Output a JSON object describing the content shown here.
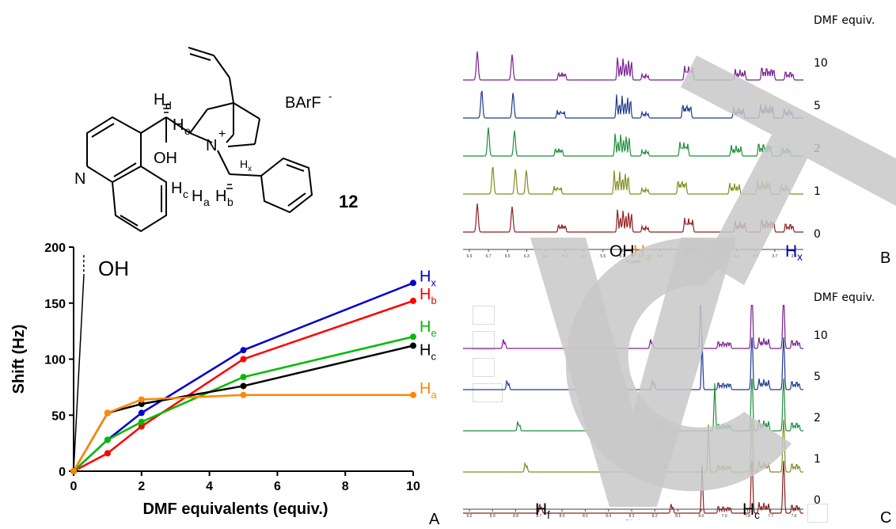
{
  "panels": {
    "a": "A",
    "b": "B",
    "c": "C"
  },
  "structure": {
    "counterion": "BArF",
    "counterion_charge": "-",
    "compound_number": "12",
    "atom_n1": "N",
    "atom_n2": "N",
    "charge": "+",
    "oh": "OH",
    "h_d": "H",
    "h_d_sub": "d",
    "h_e": "H",
    "h_e_sub": "e",
    "h_c": "H",
    "h_c_sub": "c",
    "h_a": "H",
    "h_a_sub": "a",
    "h_b": "H",
    "h_b_sub": "b",
    "h_x": "H",
    "h_x_sub": "x"
  },
  "chart_data": {
    "type": "line",
    "xlabel": "DMF equivalents (equiv.)",
    "ylabel": "Shift (Hz)",
    "xlim": [
      0,
      10
    ],
    "ylim": [
      0,
      200
    ],
    "x_ticks": [
      "0",
      "2",
      "4",
      "6",
      "8",
      "10"
    ],
    "y_ticks": [
      "0",
      "50",
      "100",
      "150",
      "200"
    ],
    "annotation": "OH",
    "oh_line": {
      "x": [
        0,
        0.3
      ],
      "y": [
        0,
        195
      ]
    },
    "series": [
      {
        "name": "H",
        "sub": "x",
        "color": "#0000cc",
        "x": [
          0,
          1,
          2,
          5,
          10
        ],
        "y": [
          0,
          28,
          52,
          108,
          168
        ]
      },
      {
        "name": "H",
        "sub": "b",
        "color": "#ff0000",
        "x": [
          0,
          1,
          2,
          5,
          10
        ],
        "y": [
          0,
          16,
          40,
          100,
          152
        ]
      },
      {
        "name": "H",
        "sub": "e",
        "color": "#00bb00",
        "x": [
          0,
          1,
          2,
          5,
          10
        ],
        "y": [
          0,
          28,
          44,
          84,
          120
        ]
      },
      {
        "name": "H",
        "sub": "c",
        "color": "#000000",
        "x": [
          0,
          1,
          2,
          5,
          10
        ],
        "y": [
          0,
          52,
          60,
          76,
          112
        ]
      },
      {
        "name": "H",
        "sub": "a",
        "color": "#ff8800",
        "x": [
          0,
          1,
          2,
          5,
          10
        ],
        "y": [
          0,
          52,
          64,
          68,
          68
        ]
      }
    ]
  },
  "spectra_b": {
    "header": "DMF equiv.",
    "equivs": [
      "10",
      "5",
      "2",
      "1",
      "0"
    ],
    "colors": [
      "#7a1f8f",
      "#1f3c8f",
      "#1f8f3c",
      "#7f8f1f",
      "#8f1f1f"
    ],
    "axis_ticks": [
      "6.9",
      "6.7",
      "6.5",
      "6.3",
      "6.1",
      "5.9",
      "5.7",
      "5.5",
      "5.3",
      "5.1",
      "4.9",
      "4.7",
      "4.5",
      "4.3",
      "4.1",
      "3.9",
      "3.7",
      "3.5"
    ],
    "axis_unit": "f1 (ppm)",
    "labels": [
      {
        "h": "OH",
        "sub": "",
        "color": "#000000"
      },
      {
        "h": "H",
        "sub": "a",
        "color": "#ff8800"
      },
      {
        "h": "H",
        "sub": "b",
        "color": "#ff0000"
      },
      {
        "h": "H",
        "sub": "x",
        "color": "#0000aa"
      }
    ]
  },
  "spectra_c": {
    "header": "DMF equiv.",
    "equivs": [
      "10",
      "5",
      "2",
      "1",
      "0"
    ],
    "colors": [
      "#7a1f8f",
      "#1f3c8f",
      "#1f8f3c",
      "#7f8f1f",
      "#8f1f1f"
    ],
    "axis_ticks": [
      "9.0",
      "8.9",
      "8.8",
      "8.7",
      "8.6",
      "8.5",
      "8.4",
      "8.3",
      "8.2",
      "8.1",
      "8.0",
      "7.9",
      "7.8",
      "7.7",
      "7.6"
    ],
    "axis_unit": "f1 (ppm)",
    "labels": [
      {
        "h": "H",
        "sub": "f",
        "color": "#000000"
      },
      {
        "h": "H",
        "sub": "c",
        "color": "#000000"
      }
    ]
  }
}
